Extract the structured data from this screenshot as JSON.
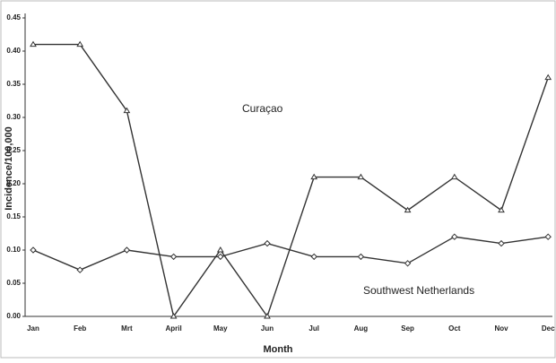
{
  "chart_data": {
    "type": "line",
    "x_label": "Month",
    "y_label": "Incidence/100,000",
    "categories": [
      "Jan",
      "Feb",
      "Mrt",
      "April",
      "May",
      "Jun",
      "Jul",
      "Aug",
      "Sep",
      "Oct",
      "Nov",
      "Dec"
    ],
    "series": [
      {
        "name": "Curaçao",
        "color": "#333333",
        "marker": "triangle",
        "values": [
          0.41,
          0.41,
          0.31,
          0,
          0.1,
          0,
          0.21,
          0.21,
          0.16,
          0.21,
          0.16,
          0.36
        ]
      },
      {
        "name": "Southwest Netherlands",
        "color": "#333333",
        "marker": "diamond",
        "values": [
          0.1,
          0.07,
          0.1,
          0.09,
          0.09,
          0.11,
          0.09,
          0.09,
          0.08,
          0.12,
          0.11,
          0.12
        ]
      }
    ],
    "ylim": [
      0,
      0.45
    ],
    "yticks": [
      {
        "value": 0,
        "label": "0.00"
      },
      {
        "value": 0.05,
        "label": "0.05"
      },
      {
        "value": 0.1,
        "label": "0.10"
      },
      {
        "value": 0.15,
        "label": "0.15"
      },
      {
        "value": 0.2,
        "label": "0.20"
      },
      {
        "value": 0.25,
        "label": "0.25"
      },
      {
        "value": 0.3,
        "label": "0.30"
      },
      {
        "value": 0.35,
        "label": "0.35"
      },
      {
        "value": 0.4,
        "label": "0.40"
      },
      {
        "value": 0.45,
        "label": "0.45"
      }
    ],
    "grid": false
  }
}
